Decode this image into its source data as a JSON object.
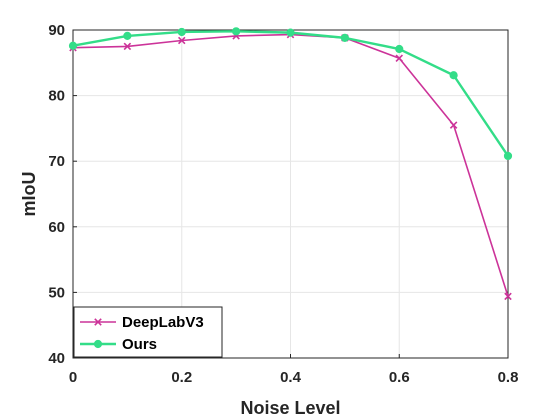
{
  "chart_data": {
    "type": "line",
    "title": "",
    "xlabel": "Noise Level",
    "ylabel": "mIoU",
    "xlim": [
      0,
      0.8
    ],
    "ylim": [
      40,
      90
    ],
    "xticks": [
      "0",
      "0.2",
      "0.4",
      "0.6",
      "0.8"
    ],
    "yticks": [
      "40",
      "50",
      "60",
      "70",
      "80",
      "90"
    ],
    "grid": true,
    "legend_position": "bottom-left",
    "x": [
      0,
      0.1,
      0.2,
      0.3,
      0.4,
      0.5,
      0.6,
      0.7,
      0.8
    ],
    "series": [
      {
        "name": "DeepLabV3",
        "color": "#CC3399",
        "marker": "x",
        "values": [
          87.3,
          87.5,
          88.4,
          89.1,
          89.3,
          88.8,
          85.7,
          75.5,
          49.4
        ]
      },
      {
        "name": "Ours",
        "color": "#33DD88",
        "marker": "circle",
        "values": [
          87.6,
          89.1,
          89.7,
          89.8,
          89.6,
          88.8,
          87.1,
          83.1,
          70.8
        ]
      }
    ]
  }
}
